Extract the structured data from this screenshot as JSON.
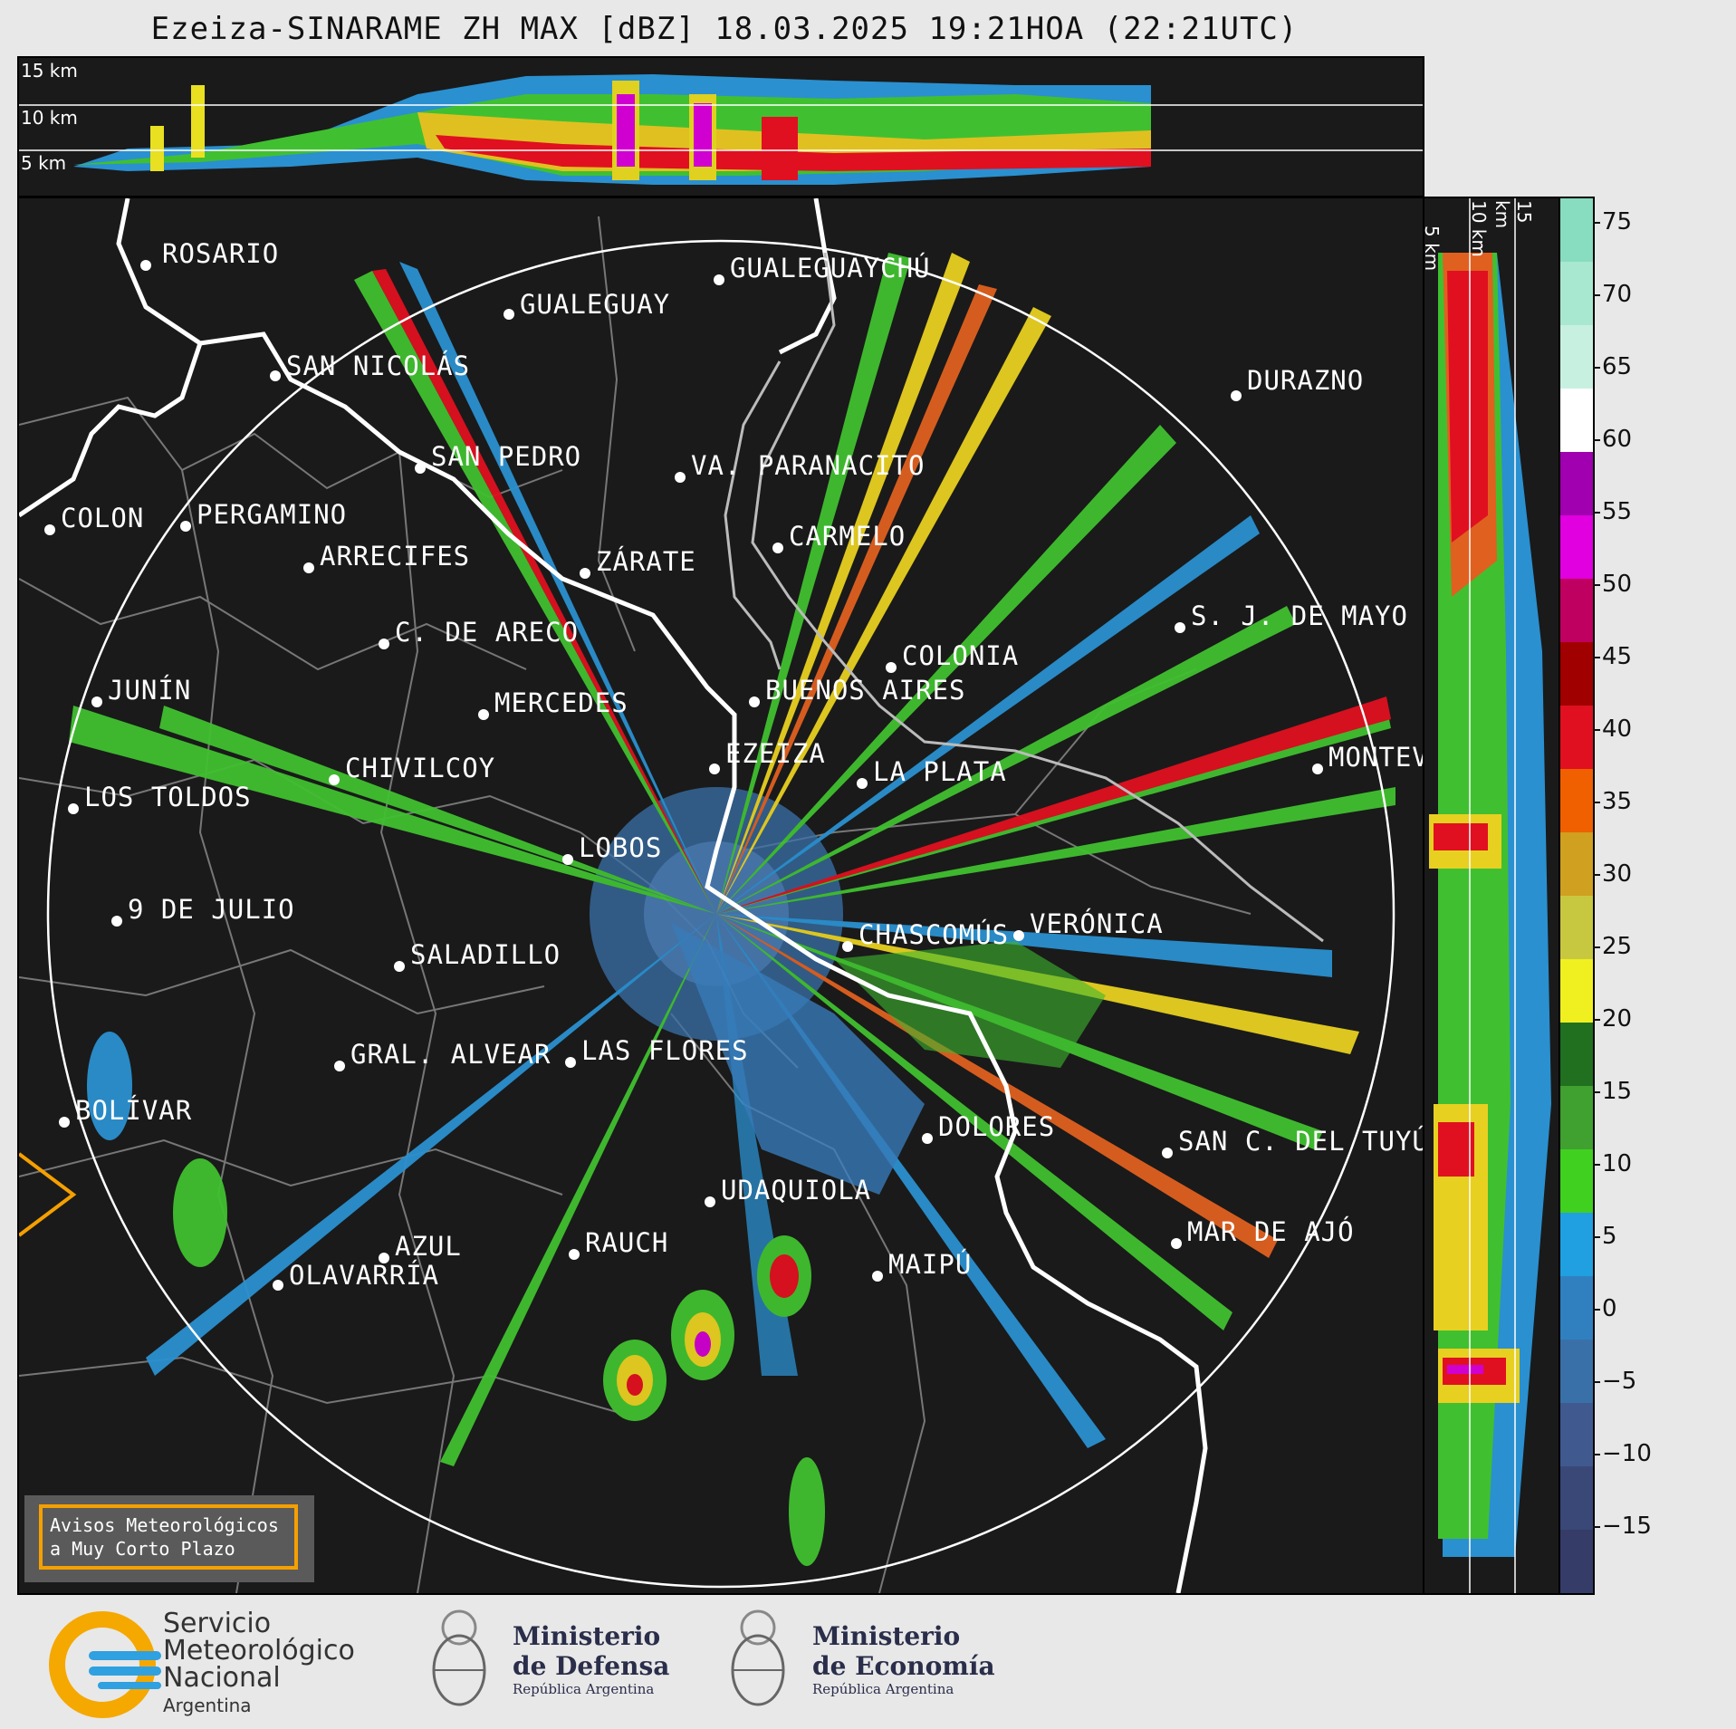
{
  "header": {
    "title": "Ezeiza-SINARAME ZH MAX [dBZ] 18.03.2025 19:21HOA (22:21UTC)"
  },
  "top_strip": {
    "height_labels": [
      "15 km",
      "10 km",
      "5 km"
    ]
  },
  "side_strip": {
    "height_labels": [
      "5 km",
      "10 km",
      "15 km"
    ]
  },
  "colorbar": {
    "ticks": [
      "75",
      "70",
      "65",
      "60",
      "55",
      "50",
      "45",
      "40",
      "35",
      "30",
      "25",
      "20",
      "15",
      "10",
      "5",
      "0",
      "−5",
      "−10",
      "−15"
    ],
    "colors": [
      "#88dcc0",
      "#a8e8d0",
      "#c8f0e0",
      "#ffffff",
      "#a000b0",
      "#e000e0",
      "#c00060",
      "#a00000",
      "#e01020",
      "#f06000",
      "#d0a020",
      "#c8c840",
      "#f0f020",
      "#207020",
      "#40a030",
      "#40d020",
      "#20a0e0",
      "#3080c0",
      "#3a70a8",
      "#405a90",
      "#3a4878",
      "#353c68"
    ]
  },
  "map": {
    "cities": [
      {
        "name": "ROSARIO"
      },
      {
        "name": "GUALEGUAYCHÚ"
      },
      {
        "name": "GUALEGUAY"
      },
      {
        "name": "SAN NICOLÁS"
      },
      {
        "name": "DURAZNO"
      },
      {
        "name": "SAN PEDRO"
      },
      {
        "name": "VA. PARANACITO"
      },
      {
        "name": "COLON"
      },
      {
        "name": "PERGAMINO"
      },
      {
        "name": "CARMELO"
      },
      {
        "name": "ARRECIFES"
      },
      {
        "name": "ZÁRATE"
      },
      {
        "name": "S. J. DE MAYO"
      },
      {
        "name": "C. DE ARECO"
      },
      {
        "name": "COLONIA"
      },
      {
        "name": "JUNÍN"
      },
      {
        "name": "MERCEDES"
      },
      {
        "name": "BUENOS AIRES"
      },
      {
        "name": "EZEIZA"
      },
      {
        "name": "MONTEV"
      },
      {
        "name": "CHIVILCOY"
      },
      {
        "name": "LA PLATA"
      },
      {
        "name": "LOS TOLDOS"
      },
      {
        "name": "LOBOS"
      },
      {
        "name": "VERÓNICA"
      },
      {
        "name": "9 DE JULIO"
      },
      {
        "name": "CHASCOMÚS"
      },
      {
        "name": "SALADILLO"
      },
      {
        "name": "GRAL. ALVEAR"
      },
      {
        "name": "LAS FLORES"
      },
      {
        "name": "BOLÍVAR"
      },
      {
        "name": "DOLORES"
      },
      {
        "name": "SAN C. DEL TUYÚ"
      },
      {
        "name": "UDAQUIOLA"
      },
      {
        "name": "AZUL"
      },
      {
        "name": "RAUCH"
      },
      {
        "name": "MAR DE AJÓ"
      },
      {
        "name": "MAIPÚ"
      },
      {
        "name": "OLAVARRÍA"
      }
    ],
    "notice": {
      "line1": "Avisos Meteorológicos",
      "line2": "a Muy Corto Plazo"
    }
  },
  "footer": {
    "smn": {
      "line1": "Servicio",
      "line2": "Meteorológico",
      "line3": "Nacional",
      "line4": "Argentina"
    },
    "defensa": {
      "line1": "Ministerio",
      "line2": "de Defensa",
      "line3": "República Argentina"
    },
    "economia": {
      "line1": "Ministerio",
      "line2": "de Economía",
      "line3": "República Argentina"
    }
  }
}
